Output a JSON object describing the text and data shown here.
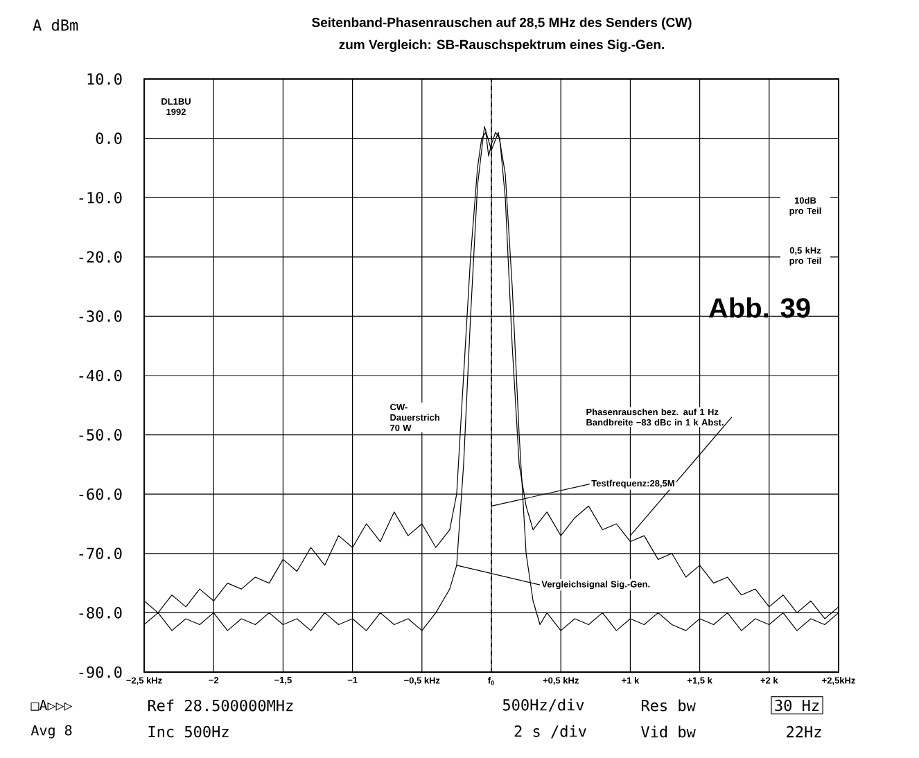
{
  "chart_data": {
    "type": "line",
    "title": "Seitenband-Phasenrauschen auf 28,5 MHz des Senders (CW)",
    "subtitle": "zum Vergleich: SB-Rauschspektrum eines Sig.-Gen.",
    "ylabel": "A dBm",
    "xlim": [
      -2.5,
      2.5
    ],
    "ylim": [
      -90,
      10
    ],
    "xticks": [
      {
        "value": -2.5,
        "label": "−2,5 kHz"
      },
      {
        "value": -2,
        "label": "−2"
      },
      {
        "value": -1.5,
        "label": "−1,5"
      },
      {
        "value": -1,
        "label": "−1"
      },
      {
        "value": -0.5,
        "label": "−0,5 kHz"
      },
      {
        "value": 0,
        "label": "f$_{0}$"
      },
      {
        "value": 0.5,
        "label": "+0,5 kHz"
      },
      {
        "value": 1,
        "label": "+1 k"
      },
      {
        "value": 1.5,
        "label": "+1,5 k"
      },
      {
        "value": 2,
        "label": "+2 k"
      },
      {
        "value": 2.5,
        "label": "+2,5kHz"
      }
    ],
    "yticks": [
      {
        "value": 10,
        "label": "10.0"
      },
      {
        "value": 0,
        "label": "0.0"
      },
      {
        "value": -10,
        "label": "-10.0"
      },
      {
        "value": -20,
        "label": "-20.0"
      },
      {
        "value": -30,
        "label": "-30.0"
      },
      {
        "value": -40,
        "label": "-40.0"
      },
      {
        "value": -50,
        "label": "-50.0"
      },
      {
        "value": -60,
        "label": "-60.0"
      },
      {
        "value": -70,
        "label": "-70.0"
      },
      {
        "value": -80,
        "label": "-80.0"
      },
      {
        "value": -90,
        "label": "-90.0"
      }
    ],
    "grid": true,
    "series": [
      {
        "color": "#000000",
        "x": [
          -2.5,
          -2.4,
          -2.3,
          -2.2,
          -2.1,
          -2.0,
          -1.9,
          -1.8,
          -1.7,
          -1.6,
          -1.5,
          -1.4,
          -1.3,
          -1.2,
          -1.1,
          -1.0,
          -0.9,
          -0.8,
          -0.7,
          -0.6,
          -0.5,
          -0.4,
          -0.3,
          -0.25,
          -0.2,
          -0.15,
          -0.1,
          -0.07,
          -0.04,
          -0.02,
          0.0,
          0.03,
          0.06,
          0.1,
          0.15,
          0.2,
          0.25,
          0.3,
          0.4,
          0.5,
          0.6,
          0.7,
          0.8,
          0.9,
          1.0,
          1.1,
          1.2,
          1.3,
          1.4,
          1.5,
          1.6,
          1.7,
          1.8,
          1.9,
          2.0,
          2.1,
          2.2,
          2.3,
          2.4,
          2.5
        ],
        "values": [
          -78,
          -80,
          -77,
          -79,
          -76,
          -78,
          -75,
          -76,
          -74,
          -75,
          -71,
          -73,
          -69,
          -72,
          -67,
          -69,
          -65,
          -68,
          -63,
          -67,
          -65,
          -69,
          -66,
          -60,
          -40,
          -20,
          -5,
          0,
          1,
          -3,
          -1,
          1,
          0,
          -10,
          -35,
          -55,
          -62,
          -66,
          -63,
          -67,
          -64,
          -62,
          -66,
          -65,
          -68,
          -67,
          -71,
          -70,
          -74,
          -72,
          -75,
          -74,
          -77,
          -76,
          -79,
          -77,
          -80,
          -78,
          -81,
          -79
        ]
      },
      {
        "color": "#000000",
        "x": [
          -2.5,
          -2.4,
          -2.3,
          -2.2,
          -2.1,
          -2.0,
          -1.9,
          -1.8,
          -1.7,
          -1.6,
          -1.5,
          -1.4,
          -1.3,
          -1.2,
          -1.1,
          -1.0,
          -0.9,
          -0.8,
          -0.7,
          -0.6,
          -0.5,
          -0.4,
          -0.35,
          -0.3,
          -0.25,
          -0.2,
          -0.15,
          -0.1,
          -0.05,
          0.0,
          0.05,
          0.1,
          0.15,
          0.2,
          0.25,
          0.3,
          0.35,
          0.4,
          0.5,
          0.6,
          0.7,
          0.8,
          0.9,
          1.0,
          1.1,
          1.2,
          1.3,
          1.4,
          1.5,
          1.6,
          1.7,
          1.8,
          1.9,
          2.0,
          2.1,
          2.2,
          2.3,
          2.4,
          2.5
        ],
        "values": [
          -82,
          -80,
          -83,
          -81,
          -82,
          -80,
          -83,
          -81,
          -82,
          -80,
          -82,
          -81,
          -83,
          -80,
          -82,
          -81,
          -83,
          -80,
          -82,
          -81,
          -83,
          -80,
          -78,
          -76,
          -72,
          -55,
          -30,
          -8,
          2,
          -2,
          1,
          -6,
          -25,
          -50,
          -70,
          -78,
          -82,
          -80,
          -83,
          -81,
          -82,
          -80,
          -83,
          -81,
          -82,
          -80,
          -82,
          -83,
          -81,
          -82,
          -80,
          -83,
          -81,
          -82,
          -80,
          -83,
          -81,
          -82,
          -80
        ]
      }
    ],
    "ref_lines": [
      {
        "axis": "x",
        "value": 0,
        "line_style": "dashed"
      }
    ],
    "annotations": [
      {
        "text": "CW-Dauerstrich 70 W",
        "x": -0.22,
        "y": -48
      },
      {
        "text": "Phasenrauschen bez. auf 1 Hz Bandbreite −83 dBc in 1 k Abst.",
        "x": 1.0,
        "y": -67
      },
      {
        "text": "Testfrequenz:28,5M",
        "x": 0,
        "y": -62
      },
      {
        "text": "Vergleichsignal Sig.-Gen.",
        "x": -0.25,
        "y": -72
      },
      "DL1BU 1992",
      "10dB pro Teil",
      "0,5 kHz pro Teil",
      "Abb. 39",
      "□A▷▷▷",
      "Avg 8",
      "Ref  28.500000MHz",
      "Inc 500Hz",
      "500Hz/div",
      "2 s /div",
      "Res bw",
      "30 Hz",
      "Vid bw",
      "22Hz"
    ]
  }
}
